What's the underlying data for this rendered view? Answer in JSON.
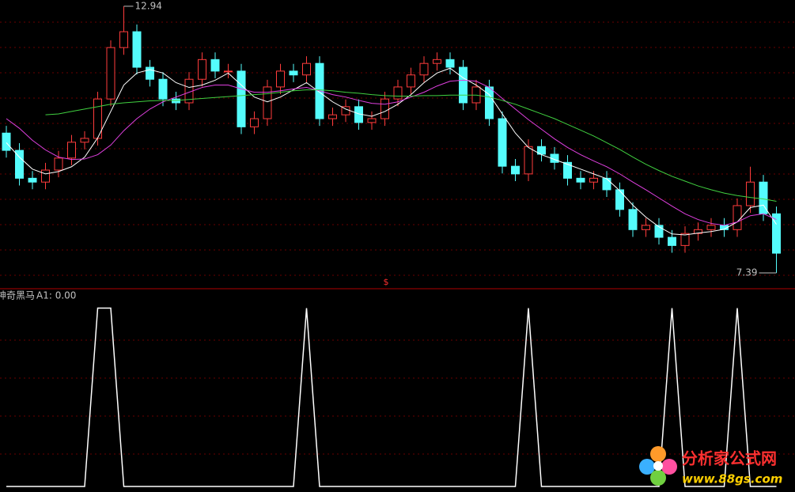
{
  "chart_data": [
    {
      "type": "candlestick",
      "open": [
        10.3,
        9.94,
        9.36,
        9.28,
        9.53,
        9.78,
        10.11,
        10.19,
        11.01,
        12.08,
        12.41,
        11.67,
        11.42,
        11.01,
        10.93,
        11.42,
        11.83,
        11.59,
        11.59,
        10.43,
        10.6,
        11.26,
        11.59,
        11.51,
        11.75,
        10.6,
        10.68,
        10.85,
        10.52,
        10.6,
        11.01,
        11.26,
        11.51,
        11.75,
        11.83,
        11.67,
        10.93,
        11.26,
        10.6,
        9.61,
        9.45,
        10.02,
        9.86,
        9.69,
        9.36,
        9.28,
        9.36,
        9.12,
        8.71,
        8.29,
        8.38,
        8.13,
        7.96,
        8.21,
        8.29,
        8.38,
        8.29,
        8.79,
        9.28,
        8.62
      ],
      "high": [
        10.45,
        10.09,
        9.51,
        9.68,
        9.93,
        10.26,
        10.34,
        11.16,
        12.23,
        12.94,
        12.56,
        11.82,
        11.57,
        11.16,
        11.57,
        11.98,
        11.98,
        11.74,
        11.74,
        10.75,
        11.41,
        11.74,
        11.74,
        11.9,
        11.9,
        10.83,
        11.0,
        11.0,
        10.75,
        11.16,
        11.41,
        11.66,
        11.9,
        11.98,
        11.98,
        11.82,
        11.41,
        11.41,
        10.75,
        9.76,
        10.17,
        10.17,
        10.01,
        9.84,
        9.51,
        9.51,
        9.51,
        9.27,
        8.86,
        8.53,
        8.53,
        8.28,
        8.36,
        8.44,
        8.53,
        8.53,
        8.94,
        9.6,
        9.43,
        8.77
      ],
      "low": [
        9.79,
        9.21,
        9.13,
        9.13,
        9.38,
        9.63,
        9.96,
        10.04,
        10.86,
        11.93,
        11.52,
        11.27,
        10.86,
        10.78,
        10.78,
        11.27,
        11.44,
        11.44,
        10.28,
        10.28,
        10.45,
        11.11,
        11.36,
        11.36,
        10.45,
        10.45,
        10.53,
        10.37,
        10.37,
        10.45,
        10.86,
        11.11,
        11.36,
        11.6,
        11.52,
        10.78,
        10.78,
        10.45,
        9.46,
        9.3,
        9.3,
        9.71,
        9.54,
        9.21,
        9.13,
        9.13,
        8.97,
        8.56,
        8.14,
        8.14,
        7.98,
        7.81,
        7.81,
        8.06,
        8.14,
        8.14,
        8.14,
        8.64,
        8.47,
        7.39
      ],
      "close": [
        9.94,
        9.36,
        9.28,
        9.53,
        9.78,
        10.11,
        10.19,
        11.01,
        12.08,
        12.41,
        11.67,
        11.42,
        11.01,
        10.93,
        11.42,
        11.83,
        11.59,
        11.59,
        10.43,
        10.6,
        11.26,
        11.59,
        11.51,
        11.75,
        10.6,
        10.68,
        10.85,
        10.52,
        10.6,
        11.01,
        11.26,
        11.51,
        11.75,
        11.83,
        11.67,
        10.93,
        11.26,
        10.6,
        9.61,
        9.45,
        10.02,
        9.86,
        9.69,
        9.36,
        9.28,
        9.36,
        9.12,
        8.71,
        8.29,
        8.38,
        8.13,
        7.96,
        8.21,
        8.29,
        8.38,
        8.29,
        8.79,
        9.28,
        8.62,
        7.8
      ],
      "up_color": "#ff3c3c",
      "down_color": "#54fcfc",
      "series": [
        {
          "color": "#ffffff",
          "values": [
            10.1,
            9.8,
            9.55,
            9.45,
            9.5,
            9.6,
            9.8,
            10.2,
            10.75,
            11.3,
            11.55,
            11.62,
            11.55,
            11.35,
            11.25,
            11.3,
            11.4,
            11.55,
            11.3,
            11.05,
            10.95,
            11.05,
            11.2,
            11.35,
            11.15,
            10.95,
            10.8,
            10.7,
            10.65,
            10.75,
            10.9,
            11.1,
            11.35,
            11.55,
            11.65,
            11.45,
            11.3,
            11.1,
            10.7,
            10.3,
            10.0,
            9.85,
            9.75,
            9.65,
            9.55,
            9.45,
            9.35,
            9.1,
            8.8,
            8.55,
            8.35,
            8.2,
            8.18,
            8.22,
            8.25,
            8.3,
            8.45,
            8.75,
            8.8,
            8.4
          ]
        },
        {
          "color": "#e040e0",
          "values": [
            10.6,
            10.4,
            10.15,
            9.95,
            9.8,
            9.75,
            9.76,
            9.85,
            10.05,
            10.35,
            10.6,
            10.8,
            10.95,
            11.05,
            11.15,
            11.25,
            11.3,
            11.3,
            11.22,
            11.15,
            11.15,
            11.18,
            11.22,
            11.25,
            11.18,
            11.1,
            11.05,
            10.98,
            10.92,
            10.9,
            10.95,
            11.05,
            11.15,
            11.28,
            11.38,
            11.4,
            11.38,
            11.25,
            11.02,
            10.8,
            10.58,
            10.38,
            10.18,
            10.0,
            9.85,
            9.72,
            9.6,
            9.45,
            9.28,
            9.12,
            8.95,
            8.78,
            8.62,
            8.5,
            8.42,
            8.38,
            8.45,
            8.58,
            8.62,
            8.5
          ]
        },
        {
          "color": "#40d040",
          "values": [
            null,
            null,
            null,
            10.68,
            10.7,
            10.75,
            10.8,
            10.85,
            10.9,
            10.93,
            10.95,
            10.97,
            10.98,
            10.98,
            11.0,
            11.02,
            11.04,
            11.06,
            11.08,
            11.1,
            11.12,
            11.15,
            11.18,
            11.2,
            11.2,
            11.18,
            11.15,
            11.13,
            11.1,
            11.08,
            11.07,
            11.07,
            11.08,
            11.08,
            11.09,
            11.09,
            11.09,
            11.05,
            10.98,
            10.9,
            10.8,
            10.7,
            10.6,
            10.48,
            10.36,
            10.24,
            10.1,
            9.96,
            9.8,
            9.65,
            9.52,
            9.4,
            9.3,
            9.2,
            9.12,
            9.05,
            9.0,
            8.96,
            8.93,
            8.88
          ]
        }
      ],
      "ylim": [
        7.11,
        13.07
      ],
      "marker": "$"
    },
    {
      "type": "line",
      "title": "神奇黑马",
      "subtitle": "A1: 0.00",
      "color": "#ffffff",
      "values": [
        0,
        0,
        0,
        0,
        0,
        0,
        0,
        1,
        1,
        0,
        0,
        0,
        0,
        0,
        0,
        0,
        0,
        0,
        0,
        0,
        0,
        0,
        0,
        1,
        0,
        0,
        0,
        0,
        0,
        0,
        0,
        0,
        0,
        0,
        0,
        0,
        0,
        0,
        0,
        0,
        1,
        0,
        0,
        0,
        0,
        0,
        0,
        0,
        0,
        0,
        0,
        1,
        0,
        0,
        0,
        0,
        1,
        0,
        0,
        0
      ],
      "ylim": [
        0,
        1.02
      ]
    }
  ],
  "watermark": {
    "name": "分析家公式网",
    "url": "www.88gs.com"
  }
}
